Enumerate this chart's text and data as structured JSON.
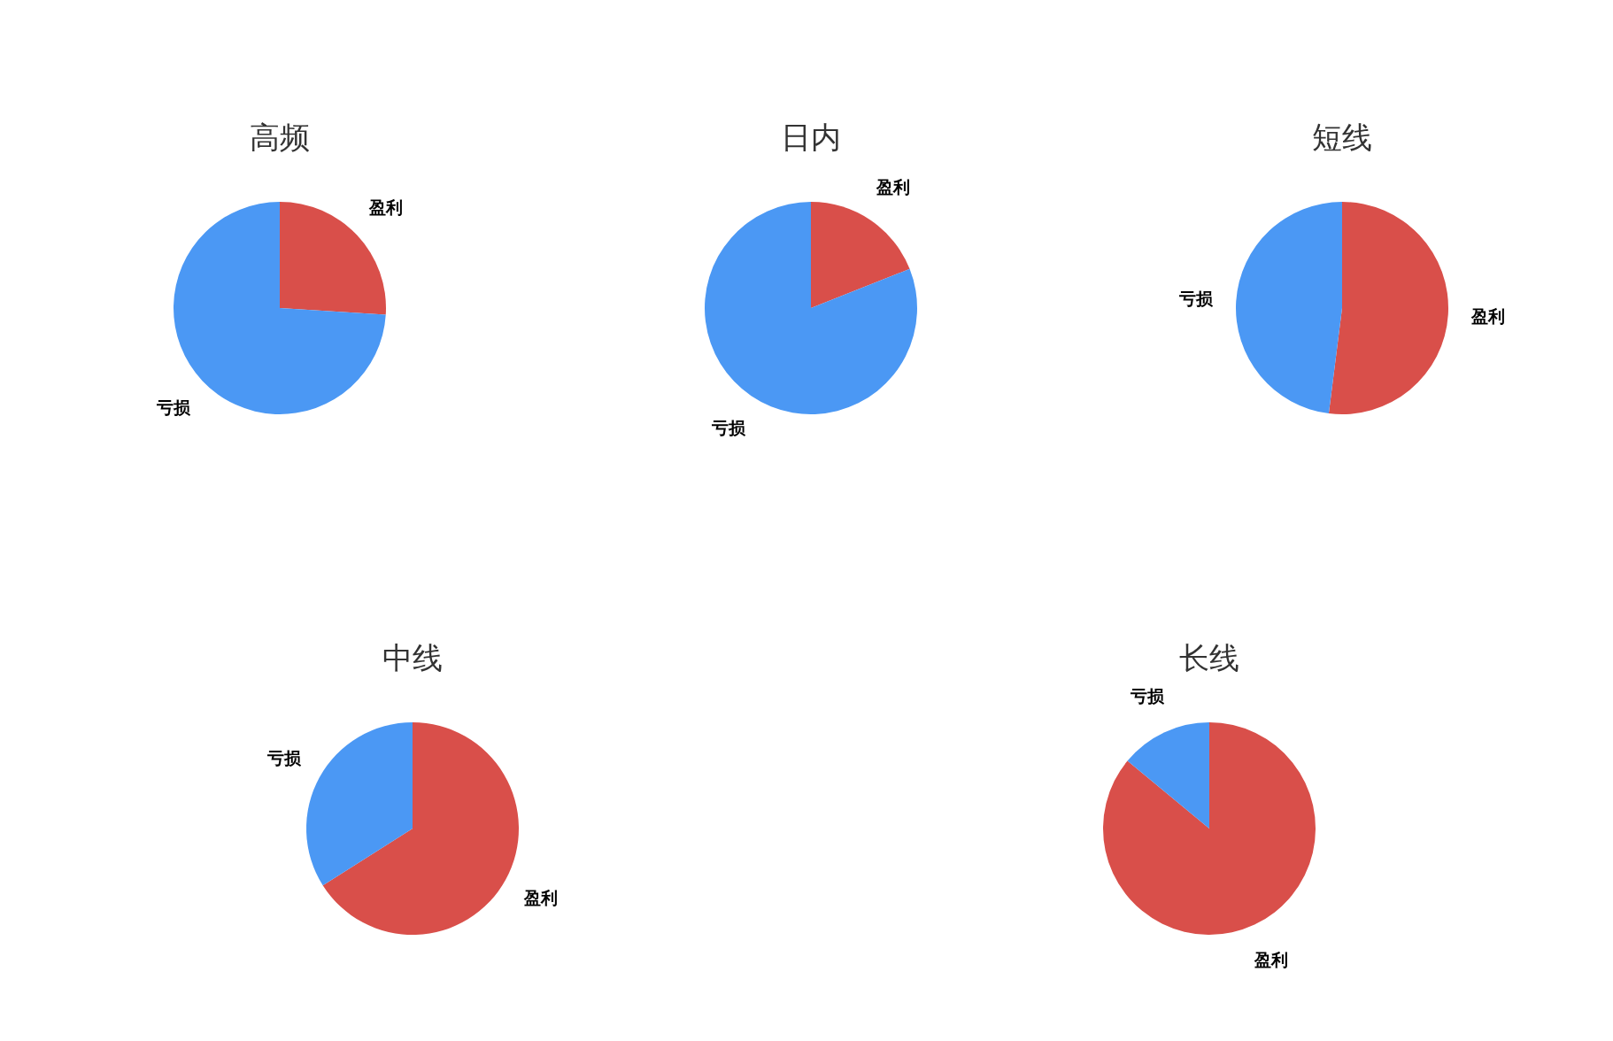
{
  "chart_data": [
    {
      "type": "pie",
      "title": "高频",
      "categories": [
        "盈利",
        "亏损"
      ],
      "values": [
        26,
        74
      ],
      "colors": [
        "#d94f4a",
        "#4b98f4"
      ]
    },
    {
      "type": "pie",
      "title": "日内",
      "categories": [
        "盈利",
        "亏损"
      ],
      "values": [
        19,
        81
      ],
      "colors": [
        "#d94f4a",
        "#4b98f4"
      ]
    },
    {
      "type": "pie",
      "title": "短线",
      "categories": [
        "盈利",
        "亏损"
      ],
      "values": [
        52,
        48
      ],
      "colors": [
        "#d94f4a",
        "#4b98f4"
      ]
    },
    {
      "type": "pie",
      "title": "中线",
      "categories": [
        "盈利",
        "亏损"
      ],
      "values": [
        66,
        34
      ],
      "colors": [
        "#d94f4a",
        "#4b98f4"
      ]
    },
    {
      "type": "pie",
      "title": "长线",
      "categories": [
        "盈利",
        "亏损"
      ],
      "values": [
        86,
        14
      ],
      "colors": [
        "#d94f4a",
        "#4b98f4"
      ]
    }
  ]
}
